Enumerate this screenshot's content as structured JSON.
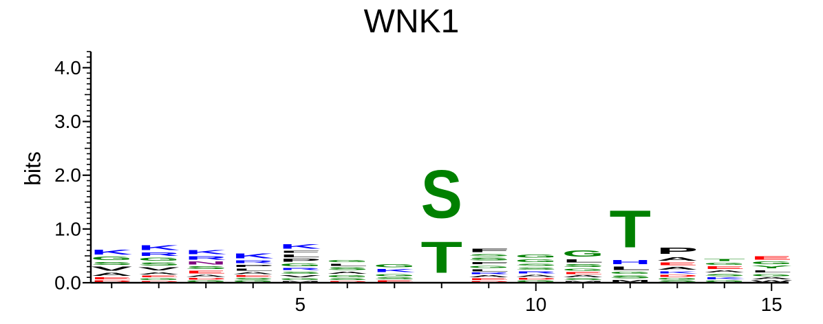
{
  "chart_data": {
    "type": "sequence-logo",
    "title": "WNK1",
    "ylabel": "bits",
    "ylim": [
      0,
      4.3
    ],
    "y_ticks": [
      "0.0",
      "1.0",
      "2.0",
      "3.0",
      "4.0"
    ],
    "y_tick_values": [
      0,
      1,
      2,
      3,
      4
    ],
    "x_ticks": [
      "5",
      "10",
      "15"
    ],
    "x_tick_values": [
      5,
      10,
      15
    ],
    "color_scheme": {
      "K": "#0000ff",
      "R": "#0000ff",
      "H": "#0000ff",
      "S": "#008000",
      "T": "#008000",
      "G": "#008000",
      "Y": "#008000",
      "C": "#008000",
      "Q": "#008000",
      "P": "#000000",
      "F": "#000000",
      "L": "#000000",
      "A": "#000000",
      "V": "#000000",
      "I": "#000000",
      "M": "#000000",
      "W": "#000000",
      "E": "#ff0000",
      "D": "#ff0000",
      "N": "#800080"
    },
    "positions": [
      {
        "pos": 1,
        "letters": [
          [
            "D",
            0.05
          ],
          [
            "E",
            0.06
          ],
          [
            "A",
            0.09
          ],
          [
            "V",
            0.12
          ],
          [
            "S",
            0.08
          ],
          [
            "G",
            0.1
          ],
          [
            "K",
            0.14
          ]
        ]
      },
      {
        "pos": 2,
        "letters": [
          [
            "D",
            0.04
          ],
          [
            "G",
            0.05
          ],
          [
            "E",
            0.05
          ],
          [
            "A",
            0.07
          ],
          [
            "V",
            0.09
          ],
          [
            "S",
            0.09
          ],
          [
            "G",
            0.09
          ],
          [
            "R",
            0.1
          ],
          [
            "K",
            0.14
          ]
        ]
      },
      {
        "pos": 3,
        "letters": [
          [
            "G",
            0.05
          ],
          [
            "D",
            0.05
          ],
          [
            "A",
            0.06
          ],
          [
            "E",
            0.08
          ],
          [
            "S",
            0.08
          ],
          [
            "N",
            0.09
          ],
          [
            "R",
            0.1
          ],
          [
            "K",
            0.12
          ]
        ]
      },
      {
        "pos": 4,
        "letters": [
          [
            "G",
            0.05
          ],
          [
            "S",
            0.05
          ],
          [
            "E",
            0.05
          ],
          [
            "A",
            0.06
          ],
          [
            "L",
            0.07
          ],
          [
            "P",
            0.07
          ],
          [
            "R",
            0.08
          ],
          [
            "K",
            0.14
          ]
        ]
      },
      {
        "pos": 5,
        "letters": [
          [
            "M",
            0.04
          ],
          [
            "G",
            0.05
          ],
          [
            "V",
            0.06
          ],
          [
            "S",
            0.07
          ],
          [
            "R",
            0.07
          ],
          [
            "G",
            0.08
          ],
          [
            "P",
            0.09
          ],
          [
            "L",
            0.08
          ],
          [
            "F",
            0.07
          ],
          [
            "K",
            0.13
          ]
        ]
      },
      {
        "pos": 6,
        "letters": [
          [
            "D",
            0.04
          ],
          [
            "S",
            0.05
          ],
          [
            "G",
            0.06
          ],
          [
            "A",
            0.07
          ],
          [
            "S",
            0.08
          ],
          [
            "L",
            0.07
          ],
          [
            "G",
            0.06
          ]
        ]
      },
      {
        "pos": 7,
        "letters": [
          [
            "E",
            0.05
          ],
          [
            "S",
            0.06
          ],
          [
            "G",
            0.07
          ],
          [
            "K",
            0.09
          ],
          [
            "G",
            0.09
          ]
        ]
      },
      {
        "pos": 8,
        "letters": [
          [
            "T",
            0.93
          ],
          [
            "S",
            1.42
          ]
        ]
      },
      {
        "pos": 9,
        "letters": [
          [
            "D",
            0.04
          ],
          [
            "E",
            0.05
          ],
          [
            "A",
            0.06
          ],
          [
            "R",
            0.05
          ],
          [
            "L",
            0.06
          ],
          [
            "G",
            0.07
          ],
          [
            "F",
            0.07
          ],
          [
            "S",
            0.08
          ],
          [
            "S",
            0.07
          ],
          [
            "F",
            0.1
          ]
        ]
      },
      {
        "pos": 10,
        "letters": [
          [
            "G",
            0.05
          ],
          [
            "D",
            0.05
          ],
          [
            "A",
            0.06
          ],
          [
            "R",
            0.07
          ],
          [
            "S",
            0.07
          ],
          [
            "S",
            0.07
          ],
          [
            "G",
            0.08
          ],
          [
            "G",
            0.09
          ]
        ]
      },
      {
        "pos": 11,
        "letters": [
          [
            "M",
            0.04
          ],
          [
            "S",
            0.05
          ],
          [
            "A",
            0.06
          ],
          [
            "E",
            0.06
          ],
          [
            "G",
            0.07
          ],
          [
            "S",
            0.08
          ],
          [
            "L",
            0.09
          ],
          [
            "G",
            0.18
          ]
        ]
      },
      {
        "pos": 12,
        "letters": [
          [
            "M",
            0.07
          ],
          [
            "S",
            0.08
          ],
          [
            "G",
            0.07
          ],
          [
            "L",
            0.1
          ],
          [
            "H",
            0.12
          ],
          [
            "T",
            1.1
          ]
        ]
      },
      {
        "pos": 13,
        "letters": [
          [
            "S",
            0.05
          ],
          [
            "G",
            0.05
          ],
          [
            "D",
            0.06
          ],
          [
            "K",
            0.07
          ],
          [
            "A",
            0.08
          ],
          [
            "E",
            0.08
          ],
          [
            "A",
            0.11
          ],
          [
            "P",
            0.18
          ]
        ]
      },
      {
        "pos": 14,
        "letters": [
          [
            "G",
            0.05
          ],
          [
            "K",
            0.06
          ],
          [
            "S",
            0.07
          ],
          [
            "A",
            0.06
          ],
          [
            "E",
            0.08
          ],
          [
            "G",
            0.07
          ],
          [
            "T",
            0.07
          ]
        ]
      },
      {
        "pos": 15,
        "letters": [
          [
            "W",
            0.05
          ],
          [
            "A",
            0.06
          ],
          [
            "G",
            0.07
          ],
          [
            "L",
            0.07
          ],
          [
            "Y",
            0.08
          ],
          [
            "G",
            0.08
          ],
          [
            "E",
            0.1
          ]
        ]
      }
    ]
  }
}
